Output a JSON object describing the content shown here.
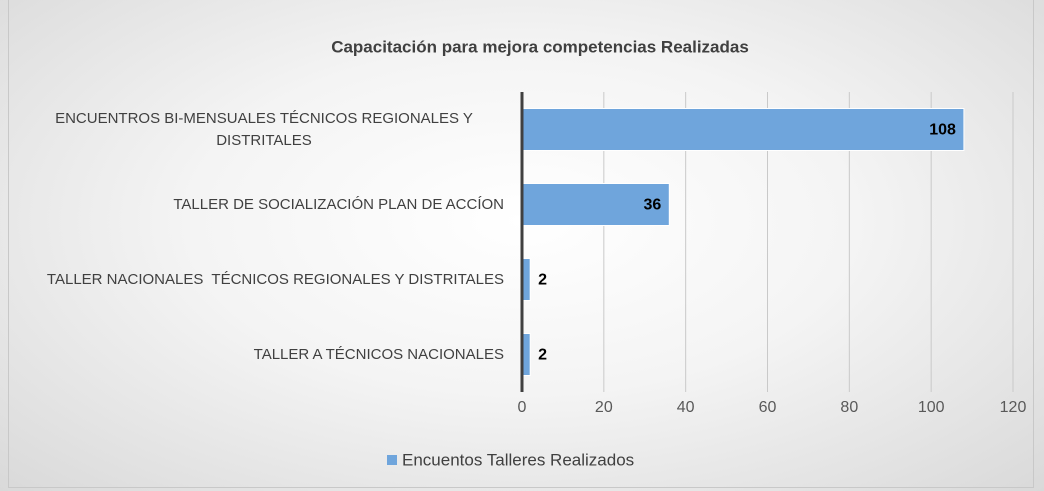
{
  "chart_data": {
    "type": "bar",
    "orientation": "horizontal",
    "title": "Capacitación para mejora competencias  Realizadas",
    "categories": [
      "ENCUENTROS BI-MENSUALES TÉCNICOS REGIONALES Y DISTRITALES",
      "TALLER DE SOCIALIZACIÓN PLAN DE ACCÍON",
      "TALLER NACIONALES  TÉCNICOS REGIONALES Y DISTRITALES",
      "TALLER A TÉCNICOS NACIONALES"
    ],
    "series": [
      {
        "name": "Encuentos Talleres Realizados",
        "color": "#6fa5dc",
        "values": [
          108,
          36,
          2,
          2
        ]
      }
    ],
    "xlim": [
      0,
      120
    ],
    "xticks": [
      0,
      20,
      40,
      60,
      80,
      100,
      120
    ],
    "grid": true,
    "legend": "bottom"
  }
}
